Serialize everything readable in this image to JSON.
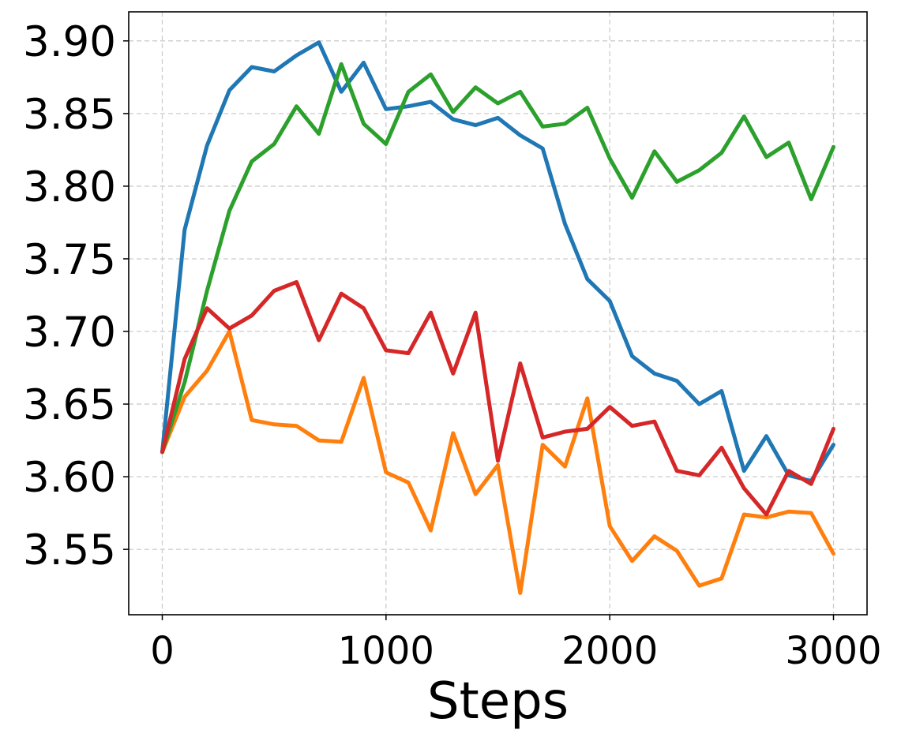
{
  "chart_data": {
    "type": "line",
    "title": "",
    "xlabel": "Steps",
    "ylabel": "",
    "xlim": [
      -150,
      3150
    ],
    "ylim": [
      3.505,
      3.92
    ],
    "xticks": [
      0,
      1000,
      2000,
      3000
    ],
    "xtick_labels": [
      "0",
      "1000",
      "2000",
      "3000"
    ],
    "yticks": [
      3.55,
      3.6,
      3.65,
      3.7,
      3.75,
      3.8,
      3.85,
      3.9
    ],
    "ytick_labels": [
      "3.55",
      "3.60",
      "3.65",
      "3.70",
      "3.75",
      "3.80",
      "3.85",
      "3.90"
    ],
    "grid": true,
    "x": [
      0,
      100,
      200,
      300,
      400,
      500,
      600,
      700,
      800,
      900,
      1000,
      1100,
      1200,
      1300,
      1400,
      1500,
      1600,
      1700,
      1800,
      1900,
      2000,
      2100,
      2200,
      2300,
      2400,
      2500,
      2600,
      2700,
      2800,
      2900,
      3000
    ],
    "series": [
      {
        "color": "#1f77b4",
        "values": [
          3.617,
          3.77,
          3.828,
          3.866,
          3.882,
          3.879,
          3.89,
          3.899,
          3.865,
          3.885,
          3.853,
          3.855,
          3.858,
          3.846,
          3.842,
          3.847,
          3.835,
          3.826,
          3.774,
          3.736,
          3.721,
          3.683,
          3.671,
          3.666,
          3.65,
          3.659,
          3.604,
          3.628,
          3.601,
          3.597,
          3.622
        ]
      },
      {
        "color": "#ff7f0e",
        "values": [
          3.617,
          3.655,
          3.673,
          3.7,
          3.639,
          3.636,
          3.635,
          3.625,
          3.624,
          3.668,
          3.603,
          3.596,
          3.563,
          3.63,
          3.588,
          3.608,
          3.52,
          3.622,
          3.607,
          3.654,
          3.566,
          3.542,
          3.559,
          3.549,
          3.525,
          3.53,
          3.574,
          3.572,
          3.576,
          3.575,
          3.547
        ]
      },
      {
        "color": "#2ca02c",
        "values": [
          3.617,
          3.665,
          3.728,
          3.783,
          3.817,
          3.829,
          3.855,
          3.836,
          3.884,
          3.843,
          3.829,
          3.865,
          3.877,
          3.851,
          3.868,
          3.857,
          3.865,
          3.841,
          3.843,
          3.854,
          3.819,
          3.792,
          3.824,
          3.803,
          3.811,
          3.823,
          3.848,
          3.82,
          3.83,
          3.791,
          3.827
        ]
      },
      {
        "color": "#d62728",
        "values": [
          3.617,
          3.681,
          3.716,
          3.702,
          3.711,
          3.728,
          3.734,
          3.694,
          3.726,
          3.716,
          3.687,
          3.685,
          3.713,
          3.671,
          3.713,
          3.611,
          3.678,
          3.627,
          3.631,
          3.633,
          3.648,
          3.635,
          3.638,
          3.604,
          3.601,
          3.62,
          3.592,
          3.574,
          3.604,
          3.595,
          3.633
        ]
      }
    ]
  }
}
